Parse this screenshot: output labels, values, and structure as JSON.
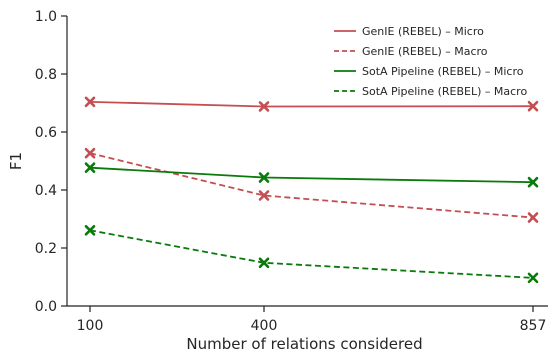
{
  "chart_data": {
    "type": "line",
    "xlabel": "Number of relations considered",
    "ylabel": "F1",
    "x": [
      100,
      400,
      857
    ],
    "x_tick_labels": [
      "100",
      "400",
      "857"
    ],
    "ylim": [
      0.0,
      1.0
    ],
    "y_ticks": [
      0.0,
      0.2,
      0.4,
      0.6,
      0.8,
      1.0
    ],
    "y_tick_labels": [
      "0.0",
      "0.2",
      "0.4",
      "0.6",
      "0.8",
      "1.0"
    ],
    "grid": false,
    "legend_position": "top-right",
    "series": [
      {
        "name": "GenIE (REBEL) – Micro",
        "values": [
          0.704,
          0.688,
          0.689
        ],
        "color": "#c44e52",
        "style": "solid",
        "marker": "x"
      },
      {
        "name": "GenIE (REBEL) – Macro",
        "values": [
          0.527,
          0.381,
          0.305
        ],
        "color": "#c44e52",
        "style": "dashed",
        "marker": "x"
      },
      {
        "name": "SotA Pipeline (REBEL) – Micro",
        "values": [
          0.477,
          0.443,
          0.427
        ],
        "color": "#0a7a0a",
        "style": "solid",
        "marker": "x"
      },
      {
        "name": "SotA Pipeline (REBEL) – Macro",
        "values": [
          0.261,
          0.149,
          0.097
        ],
        "color": "#0a7a0a",
        "style": "dashed",
        "marker": "x"
      }
    ]
  }
}
